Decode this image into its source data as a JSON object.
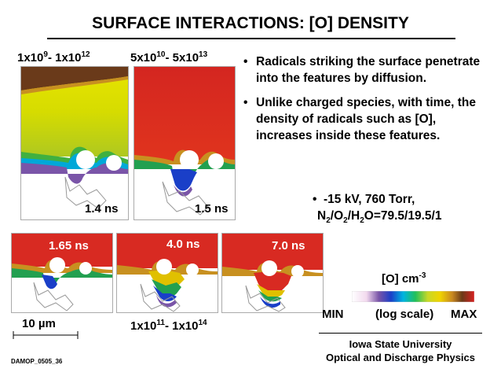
{
  "title": "SURFACE INTERACTIONS: [O] DENSITY",
  "ranges": {
    "r1": {
      "base1": "1x10",
      "exp1": "9",
      "sep": "- 1x10",
      "exp2": "12"
    },
    "r2": {
      "base1": "5x10",
      "exp1": "10",
      "sep": "- 5x10",
      "exp2": "13"
    },
    "r3": {
      "base1": "1x10",
      "exp1": "11",
      "sep": "- 1x10",
      "exp2": "14"
    }
  },
  "panels": {
    "p1": {
      "label": "1.4 ns"
    },
    "p2": {
      "label": "1.5 ns"
    },
    "p3": {
      "label": "1.65 ns"
    },
    "p4": {
      "label": "4.0 ns"
    },
    "p5": {
      "label": "7.0 ns"
    }
  },
  "bullets": [
    "Radicals striking the surface penetrate into the features by diffusion.",
    "Unlike charged species, with time, the density of radicals such as [O], increases inside these features."
  ],
  "conditions": {
    "line1": "-15 kV, 760 Torr,",
    "line2": {
      "n": "N",
      "s1": "2",
      "sl1": "/O",
      "s2": "2",
      "sl2": "/H",
      "s3": "2",
      "rest": "O=79.5/19.5/1"
    }
  },
  "colorbar": {
    "title": "[O]  cm",
    "title_exp": "-3",
    "min": "MIN",
    "scale": "(log scale)",
    "max": "MAX",
    "colors": [
      "#ffffff",
      "#f2d9ee",
      "#7a55a8",
      "#1a3fc8",
      "#00b4e0",
      "#22c05a",
      "#c8d828",
      "#f0d400",
      "#c88820",
      "#6a3a18",
      "#d82020"
    ]
  },
  "scale": {
    "label": "10 µm"
  },
  "affiliation": {
    "line1": "Iowa State University",
    "line2": "Optical and Discharge Physics"
  },
  "code": "DAMOP_0505_36",
  "colors": {
    "red": "#d82a22",
    "dark_red": "#b01818",
    "yellow": "#e4e000",
    "brown": "#6a3a1a",
    "green": "#22a050",
    "blue": "#1a3fc8",
    "purple": "#7a55a8"
  }
}
